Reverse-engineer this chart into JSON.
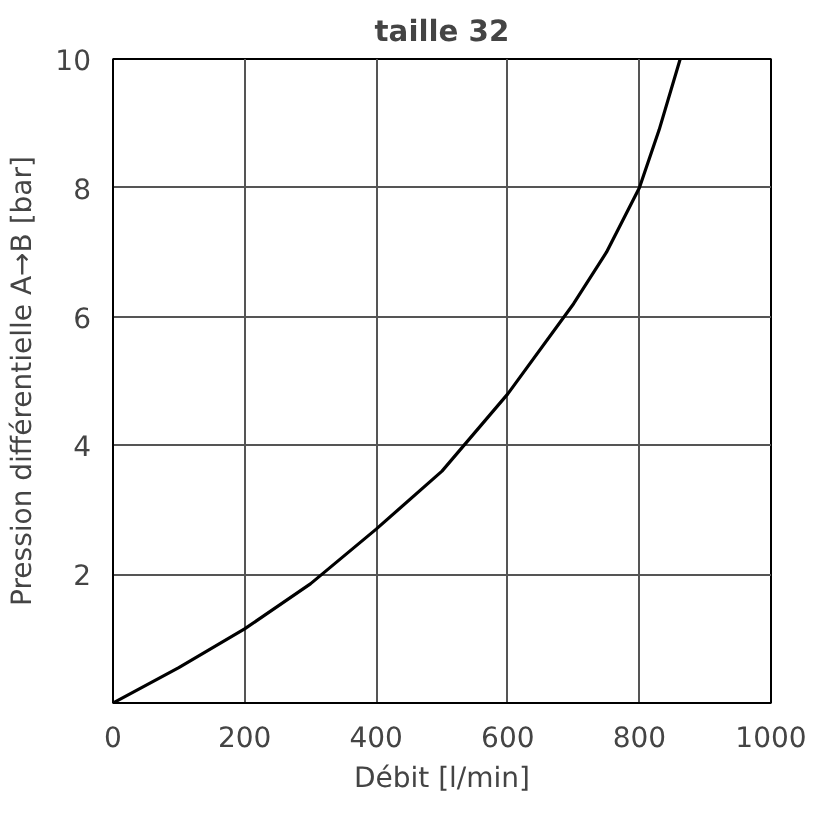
{
  "chart_data": {
    "type": "line",
    "title": "taille 32",
    "xlabel": "Débit [l/min]",
    "ylabel": "Pression différentielle A→B [bar]",
    "x": [
      0,
      100,
      200,
      300,
      400,
      500,
      600,
      700,
      750,
      800,
      830,
      862
    ],
    "series": [
      {
        "color": "#000000",
        "values": [
          0,
          0.55,
          1.15,
          1.85,
          2.7,
          3.6,
          4.8,
          6.2,
          7.0,
          8.0,
          8.9,
          10
        ]
      }
    ],
    "xlim": [
      0,
      1000
    ],
    "ylim": [
      0,
      10
    ],
    "xticks": [
      0,
      200,
      400,
      600,
      800,
      1000
    ],
    "yticks": [
      {
        "value": 0,
        "label": null
      },
      2,
      4,
      6,
      8,
      10
    ],
    "grid": true,
    "line_style": "solid"
  }
}
